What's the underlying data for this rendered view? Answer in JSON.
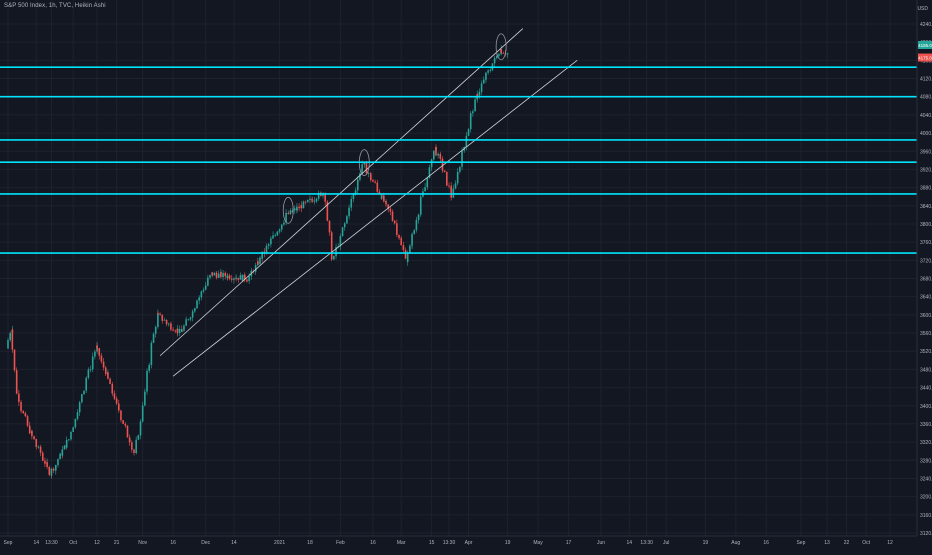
{
  "header": {
    "symbol_title": "S&P 500 Index, 1h, TVC, Heikin Ashi",
    "currency": "USD"
  },
  "colors": {
    "background": "#131722",
    "grid": "#1e222d",
    "up_candle": "#26a69a",
    "down_candle": "#ef5350",
    "level_line": "#00e5ff",
    "trend_line": "#d1d4dc",
    "axis_text": "#b2b5be"
  },
  "chart_data": {
    "type": "candlestick",
    "title": "S&P 500 Index, 1h, TVC, Heikin Ashi",
    "ylabel": "USD",
    "ylim": [
      3120,
      4240
    ],
    "grid": true,
    "y_ticks": [
      "4240.0",
      "4200.0",
      "4160.0",
      "4120.0",
      "4080.0",
      "4040.0",
      "4000.0",
      "3960.0",
      "3920.0",
      "3880.0",
      "3840.0",
      "3800.0",
      "3760.0",
      "3720.0",
      "3680.0",
      "3640.0",
      "3600.0",
      "3560.0",
      "3520.0",
      "3480.0",
      "3440.0",
      "3400.0",
      "3360.0",
      "3320.0",
      "3280.0",
      "3240.0",
      "3200.0",
      "3160.0",
      "3120.0"
    ],
    "x_ticks": [
      {
        "label": "Sep",
        "date": "2020-09-01"
      },
      {
        "label": "14",
        "date": "2020-09-14"
      },
      {
        "label": "13:30",
        "date": "2020-09-21"
      },
      {
        "label": "Oct",
        "date": "2020-10-01"
      },
      {
        "label": "12",
        "date": "2020-10-12"
      },
      {
        "label": "21",
        "date": "2020-10-21"
      },
      {
        "label": "Nov",
        "date": "2020-11-02"
      },
      {
        "label": "16",
        "date": "2020-11-16"
      },
      {
        "label": "Dec",
        "date": "2020-12-01"
      },
      {
        "label": "14",
        "date": "2020-12-14"
      },
      {
        "label": "2021",
        "date": "2021-01-04"
      },
      {
        "label": "18",
        "date": "2021-01-18"
      },
      {
        "label": "Feb",
        "date": "2021-02-01"
      },
      {
        "label": "16",
        "date": "2021-02-16"
      },
      {
        "label": "Mar",
        "date": "2021-03-01"
      },
      {
        "label": "15",
        "date": "2021-03-15"
      },
      {
        "label": "13:30",
        "date": "2021-03-23"
      },
      {
        "label": "Apr",
        "date": "2021-04-01"
      },
      {
        "label": "19",
        "date": "2021-04-19"
      },
      {
        "label": "May",
        "date": "2021-05-03"
      },
      {
        "label": "17",
        "date": "2021-05-17"
      },
      {
        "label": "Jun",
        "date": "2021-06-01"
      },
      {
        "label": "14",
        "date": "2021-06-14"
      },
      {
        "label": "13:30",
        "date": "2021-06-22"
      },
      {
        "label": "Jul",
        "date": "2021-07-01"
      },
      {
        "label": "19",
        "date": "2021-07-19"
      },
      {
        "label": "Aug",
        "date": "2021-08-02"
      },
      {
        "label": "16",
        "date": "2021-08-16"
      },
      {
        "label": "Sep",
        "date": "2021-09-01"
      },
      {
        "label": "13",
        "date": "2021-09-13"
      },
      {
        "label": "22",
        "date": "2021-09-22"
      },
      {
        "label": "Oct",
        "date": "2021-10-01"
      },
      {
        "label": "12",
        "date": "2021-10-12"
      }
    ],
    "price_path": [
      {
        "date": "2020-09-01",
        "value": 3526
      },
      {
        "date": "2020-09-03",
        "value": 3580
      },
      {
        "date": "2020-09-05",
        "value": 3440
      },
      {
        "date": "2020-09-10",
        "value": 3360
      },
      {
        "date": "2020-09-21",
        "value": 3250
      },
      {
        "date": "2020-09-30",
        "value": 3330
      },
      {
        "date": "2020-10-12",
        "value": 3530
      },
      {
        "date": "2020-10-16",
        "value": 3480
      },
      {
        "date": "2020-10-30",
        "value": 3290
      },
      {
        "date": "2020-11-09",
        "value": 3600
      },
      {
        "date": "2020-11-20",
        "value": 3560
      },
      {
        "date": "2020-12-04",
        "value": 3690
      },
      {
        "date": "2020-12-21",
        "value": 3680
      },
      {
        "date": "2021-01-08",
        "value": 3820
      },
      {
        "date": "2021-01-25",
        "value": 3870
      },
      {
        "date": "2021-01-29",
        "value": 3715
      },
      {
        "date": "2021-02-12",
        "value": 3935
      },
      {
        "date": "2021-02-26",
        "value": 3810
      },
      {
        "date": "2021-03-04",
        "value": 3720
      },
      {
        "date": "2021-03-17",
        "value": 3970
      },
      {
        "date": "2021-03-25",
        "value": 3860
      },
      {
        "date": "2021-04-05",
        "value": 4080
      },
      {
        "date": "2021-04-16",
        "value": 4185
      },
      {
        "date": "2021-04-19",
        "value": 4175
      }
    ],
    "last_price_labels": [
      "4185.0",
      "4175.0"
    ],
    "horizontal_levels": [
      {
        "value": 4145.0,
        "label": "4145.0"
      },
      {
        "value": 4080.0,
        "label": "4080.0"
      },
      {
        "value": 3985.0,
        "label": "3985.0"
      },
      {
        "value": 3936.0,
        "label": "3936.0"
      },
      {
        "value": 3866.0,
        "label": "3866.0"
      },
      {
        "value": 3736.0,
        "label": "3736.0"
      }
    ],
    "trend_lines": [
      {
        "start": {
          "date": "2020-11-10",
          "value": 3510
        },
        "end": {
          "date": "2021-04-26",
          "value": 4230
        }
      },
      {
        "start": {
          "date": "2020-11-16",
          "value": 3465
        },
        "end": {
          "date": "2021-05-21",
          "value": 4160
        }
      }
    ],
    "top_markers": [
      {
        "date": "2021-01-08",
        "value": 3830
      },
      {
        "date": "2021-02-12",
        "value": 3935
      },
      {
        "date": "2021-04-16",
        "value": 4190
      }
    ]
  }
}
